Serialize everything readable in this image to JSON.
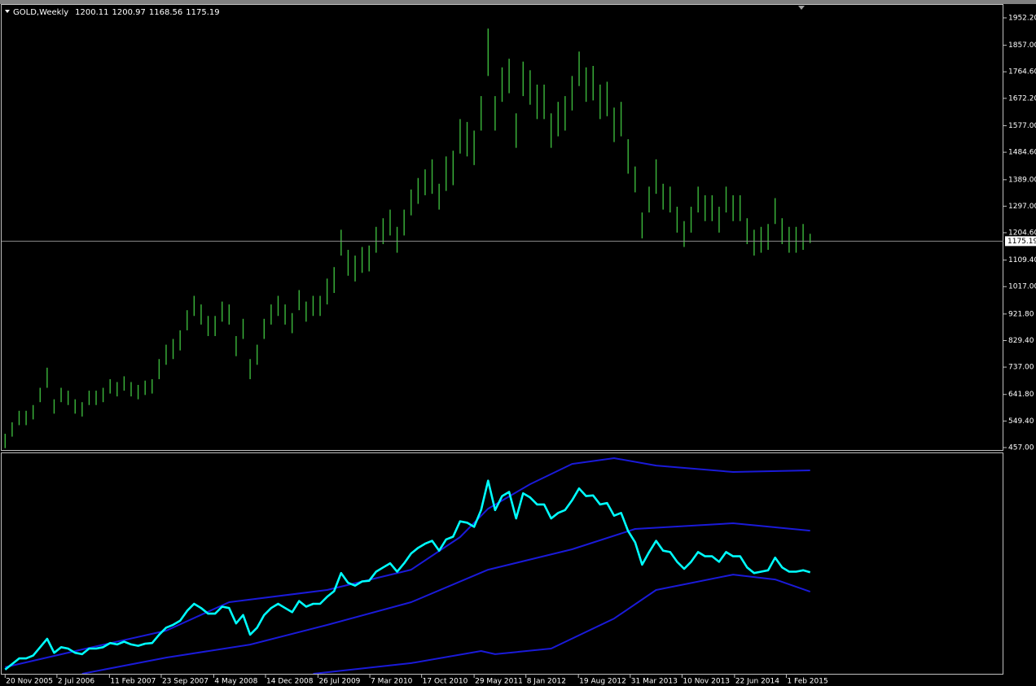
{
  "chart_data": [
    {
      "type": "ohlc",
      "title": "GOLD,Weekly",
      "ohlc": [
        1200.11,
        1200.97,
        1168.56,
        1175.19
      ],
      "color": "#3cb83c",
      "xlim": [
        -0.5,
        142.5
      ],
      "ylim": [
        448.5,
        1997.4
      ],
      "yticks": [
        {
          "value": 1952.2,
          "label": "1952.20"
        },
        {
          "value": 1857,
          "label": "1857.00"
        },
        {
          "value": 1764.6,
          "label": "1764.60"
        },
        {
          "value": 1672.2,
          "label": "1672.20"
        },
        {
          "value": 1577,
          "label": "1577.00"
        },
        {
          "value": 1484.6,
          "label": "1484.60"
        },
        {
          "value": 1389,
          "label": "1389.00"
        },
        {
          "value": 1297,
          "label": "1297.00"
        },
        {
          "value": 1204.6,
          "label": "1204.60"
        },
        {
          "value": 1109.4,
          "label": "1109.40"
        },
        {
          "value": 1017,
          "label": "1017.00"
        },
        {
          "value": 921.8,
          "label": "921.80"
        },
        {
          "value": 829.4,
          "label": "829.40"
        },
        {
          "value": 737,
          "label": "737.00"
        },
        {
          "value": 641.8,
          "label": "641.80"
        },
        {
          "value": 549.4,
          "label": "549.40"
        },
        {
          "value": 457,
          "label": "457.00"
        }
      ],
      "price_line": 1175.19,
      "high": [
        505,
        545,
        585,
        585,
        605,
        665,
        735,
        625,
        665,
        655,
        625,
        615,
        655,
        655,
        665,
        695,
        685,
        705,
        685,
        675,
        690,
        695,
        765,
        815,
        835,
        865,
        935,
        985,
        955,
        915,
        915,
        965,
        955,
        845,
        905,
        765,
        815,
        905,
        955,
        985,
        955,
        925,
        1005,
        965,
        985,
        985,
        1045,
        1085,
        1215,
        1145,
        1125,
        1155,
        1160,
        1225,
        1255,
        1285,
        1225,
        1285,
        1355,
        1395,
        1425,
        1460,
        1375,
        1470,
        1490,
        1600,
        1590,
        1560,
        1680,
        1915,
        1680,
        1780,
        1810,
        1620,
        1800,
        1770,
        1720,
        1720,
        1620,
        1660,
        1680,
        1750,
        1835,
        1780,
        1785,
        1720,
        1730,
        1640,
        1660,
        1530,
        1435,
        1275,
        1365,
        1460,
        1375,
        1365,
        1295,
        1245,
        1295,
        1365,
        1335,
        1335,
        1295,
        1365,
        1335,
        1335,
        1255,
        1215,
        1225,
        1235,
        1325,
        1255,
        1225,
        1225,
        1235,
        1200.97
      ],
      "low": [
        455,
        495,
        535,
        535,
        555,
        615,
        665,
        575,
        615,
        605,
        575,
        565,
        605,
        605,
        615,
        645,
        635,
        655,
        635,
        625,
        640,
        645,
        695,
        745,
        765,
        795,
        865,
        915,
        885,
        845,
        845,
        895,
        885,
        775,
        835,
        695,
        745,
        835,
        885,
        915,
        885,
        855,
        935,
        895,
        915,
        915,
        955,
        995,
        1125,
        1055,
        1035,
        1065,
        1070,
        1135,
        1165,
        1195,
        1135,
        1195,
        1265,
        1305,
        1335,
        1340,
        1285,
        1350,
        1370,
        1480,
        1470,
        1440,
        1560,
        1750,
        1560,
        1660,
        1690,
        1500,
        1680,
        1650,
        1600,
        1600,
        1500,
        1540,
        1560,
        1630,
        1715,
        1660,
        1665,
        1600,
        1610,
        1520,
        1540,
        1410,
        1345,
        1185,
        1275,
        1340,
        1285,
        1275,
        1205,
        1155,
        1205,
        1275,
        1245,
        1245,
        1205,
        1275,
        1245,
        1245,
        1165,
        1125,
        1135,
        1145,
        1235,
        1165,
        1135,
        1135,
        1145,
        1168.56
      ]
    },
    {
      "type": "line",
      "xlim": [
        -0.5,
        142.5
      ],
      "ylim": [
        450,
        2026
      ],
      "xticks": [
        {
          "value": 0,
          "label": "20 Nov 2005"
        },
        {
          "value": 7.4,
          "label": "2 Jul 2006"
        },
        {
          "value": 14.9,
          "label": "11 Feb 2007"
        },
        {
          "value": 22.3,
          "label": "23 Sep 2007"
        },
        {
          "value": 29.8,
          "label": "4 May 2008"
        },
        {
          "value": 37.2,
          "label": "14 Dec 2008"
        },
        {
          "value": 44.7,
          "label": "26 Jul 2009"
        },
        {
          "value": 52.1,
          "label": "7 Mar 2010"
        },
        {
          "value": 59.5,
          "label": "17 Oct 2010"
        },
        {
          "value": 67,
          "label": "29 May 2011"
        },
        {
          "value": 74.4,
          "label": "8 Jan 2012"
        },
        {
          "value": 81.9,
          "label": "19 Aug 2012"
        },
        {
          "value": 89.3,
          "label": "31 Mar 2013"
        },
        {
          "value": 96.7,
          "label": "10 Nov 2013"
        },
        {
          "value": 104.2,
          "label": "22 Jun 2014"
        },
        {
          "value": 111.6,
          "label": "1 Feb 2015"
        }
      ],
      "series": [
        {
          "color": "#1a1ad8",
          "x": [
            0,
            11,
            23,
            32,
            46,
            58,
            65,
            69,
            75,
            81,
            87,
            93,
            104,
            115
          ],
          "values": [
            497,
            624,
            758,
            962,
            1049,
            1194,
            1427,
            1630,
            1805,
            1950,
            1991,
            1938,
            1892,
            1904
          ]
        },
        {
          "color": "#1a1ad8",
          "x": [
            11,
            23,
            35,
            46,
            58,
            69,
            81,
            90,
            104,
            115
          ],
          "values": [
            450,
            566,
            659,
            799,
            962,
            1194,
            1340,
            1485,
            1526,
            1473
          ]
        },
        {
          "color": "#1a1ad8",
          "x": [
            44,
            58,
            68,
            70,
            78,
            87,
            93,
            104,
            110,
            115
          ],
          "values": [
            450,
            526,
            613,
            590,
            630,
            845,
            1049,
            1159,
            1124,
            1037
          ]
        },
        {
          "color": "#00ffff",
          "values": [
            480,
            520,
            560,
            560,
            580,
            640,
            700,
            600,
            640,
            630,
            600,
            590,
            630,
            630,
            640,
            670,
            660,
            680,
            660,
            650,
            665,
            670,
            730,
            780,
            800,
            830,
            900,
            950,
            920,
            880,
            880,
            930,
            920,
            810,
            870,
            730,
            780,
            870,
            920,
            950,
            920,
            890,
            970,
            930,
            950,
            950,
            1000,
            1040,
            1170,
            1100,
            1080,
            1110,
            1115,
            1180,
            1210,
            1240,
            1180,
            1240,
            1310,
            1350,
            1380,
            1400,
            1330,
            1410,
            1430,
            1540,
            1530,
            1500,
            1620,
            1830,
            1620,
            1720,
            1750,
            1560,
            1740,
            1710,
            1660,
            1660,
            1560,
            1600,
            1620,
            1690,
            1775,
            1720,
            1725,
            1660,
            1670,
            1580,
            1600,
            1470,
            1390,
            1230,
            1320,
            1400,
            1330,
            1320,
            1250,
            1200,
            1250,
            1320,
            1290,
            1290,
            1250,
            1320,
            1290,
            1290,
            1210,
            1170,
            1180,
            1190,
            1280,
            1210,
            1180,
            1180,
            1190,
            1175.19
          ]
        }
      ]
    }
  ]
}
